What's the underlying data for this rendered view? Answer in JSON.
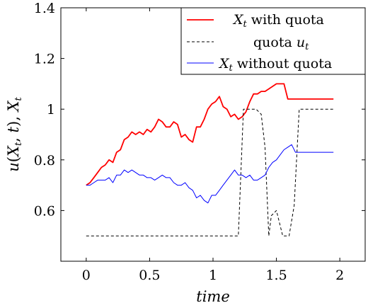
{
  "chart_data": {
    "type": "line",
    "title": "",
    "xlabel": "time",
    "ylabel": "u(X_t, t),   X_t",
    "xlim": [
      -0.2,
      2.2
    ],
    "ylim": [
      0.4,
      1.4
    ],
    "xticks": [
      0,
      0.5,
      1,
      1.5,
      2
    ],
    "yticks": [
      0.6,
      0.8,
      1,
      1.2,
      1.4
    ],
    "xtick_labels": [
      "0",
      "0.5",
      "1",
      "1.5",
      "2"
    ],
    "ytick_labels": [
      "0.6",
      "0.8",
      "1",
      "1.2",
      "1.4"
    ],
    "grid": false,
    "legend_position": "top-right",
    "series": [
      {
        "name": "X_t with quota",
        "legend_label": "X_t with quota",
        "color": "#ff0000",
        "style": "solid",
        "x": [
          0.0,
          0.03,
          0.06,
          0.09,
          0.12,
          0.15,
          0.18,
          0.21,
          0.24,
          0.27,
          0.3,
          0.33,
          0.36,
          0.39,
          0.42,
          0.45,
          0.48,
          0.51,
          0.54,
          0.57,
          0.6,
          0.63,
          0.66,
          0.69,
          0.72,
          0.75,
          0.78,
          0.81,
          0.84,
          0.87,
          0.9,
          0.93,
          0.96,
          0.99,
          1.02,
          1.05,
          1.08,
          1.11,
          1.14,
          1.17,
          1.2,
          1.23,
          1.26,
          1.29,
          1.32,
          1.35,
          1.38,
          1.41,
          1.44,
          1.47,
          1.5,
          1.53,
          1.56,
          1.59,
          1.62,
          1.65,
          1.68,
          1.71,
          1.74,
          1.77,
          1.8,
          1.83,
          1.86,
          1.89,
          1.92,
          1.95
        ],
        "y": [
          0.7,
          0.71,
          0.73,
          0.75,
          0.77,
          0.78,
          0.8,
          0.79,
          0.83,
          0.84,
          0.88,
          0.89,
          0.91,
          0.9,
          0.91,
          0.9,
          0.92,
          0.91,
          0.93,
          0.96,
          0.95,
          0.93,
          0.93,
          0.95,
          0.94,
          0.89,
          0.9,
          0.88,
          0.87,
          0.93,
          0.93,
          0.96,
          1.0,
          1.02,
          1.03,
          1.05,
          1.01,
          1.0,
          0.97,
          0.98,
          0.96,
          0.97,
          0.99,
          1.03,
          1.06,
          1.06,
          1.07,
          1.07,
          1.08,
          1.09,
          1.1,
          1.1,
          1.1,
          1.04,
          1.04,
          1.04,
          1.04,
          1.04,
          1.04,
          1.04,
          1.04,
          1.04,
          1.04,
          1.04,
          1.04,
          1.04
        ]
      },
      {
        "name": "quota u_t",
        "legend_label": "quota u_t",
        "color": "#000000",
        "style": "dashed",
        "x": [
          0.0,
          1.2,
          1.24,
          1.34,
          1.38,
          1.41,
          1.44,
          1.46,
          1.5,
          1.55,
          1.6,
          1.64,
          1.68,
          1.95
        ],
        "y": [
          0.5,
          0.5,
          1.0,
          1.0,
          0.98,
          0.85,
          0.5,
          0.58,
          0.6,
          0.5,
          0.5,
          0.62,
          1.0,
          1.0
        ]
      },
      {
        "name": "X_t without quota",
        "legend_label": "X_t without quota",
        "color": "#0000ff",
        "style": "solid",
        "x": [
          0.0,
          0.03,
          0.06,
          0.09,
          0.12,
          0.15,
          0.18,
          0.21,
          0.24,
          0.27,
          0.3,
          0.33,
          0.36,
          0.39,
          0.42,
          0.45,
          0.48,
          0.51,
          0.54,
          0.57,
          0.6,
          0.63,
          0.66,
          0.69,
          0.72,
          0.75,
          0.78,
          0.81,
          0.84,
          0.87,
          0.9,
          0.93,
          0.96,
          0.99,
          1.02,
          1.05,
          1.08,
          1.11,
          1.14,
          1.17,
          1.2,
          1.23,
          1.26,
          1.29,
          1.32,
          1.35,
          1.38,
          1.41,
          1.44,
          1.47,
          1.5,
          1.53,
          1.56,
          1.59,
          1.62,
          1.65,
          1.68,
          1.71,
          1.74,
          1.77,
          1.8,
          1.83,
          1.86,
          1.89,
          1.92,
          1.95
        ],
        "y": [
          0.7,
          0.7,
          0.71,
          0.72,
          0.72,
          0.72,
          0.73,
          0.71,
          0.74,
          0.74,
          0.76,
          0.75,
          0.76,
          0.75,
          0.74,
          0.74,
          0.73,
          0.73,
          0.72,
          0.73,
          0.74,
          0.73,
          0.73,
          0.71,
          0.7,
          0.7,
          0.71,
          0.69,
          0.68,
          0.65,
          0.66,
          0.64,
          0.63,
          0.66,
          0.66,
          0.68,
          0.7,
          0.72,
          0.74,
          0.76,
          0.74,
          0.74,
          0.73,
          0.74,
          0.72,
          0.72,
          0.73,
          0.74,
          0.77,
          0.79,
          0.8,
          0.82,
          0.84,
          0.85,
          0.86,
          0.83,
          0.83,
          0.83,
          0.83,
          0.83,
          0.83,
          0.83,
          0.83,
          0.83,
          0.83,
          0.83
        ]
      }
    ]
  }
}
